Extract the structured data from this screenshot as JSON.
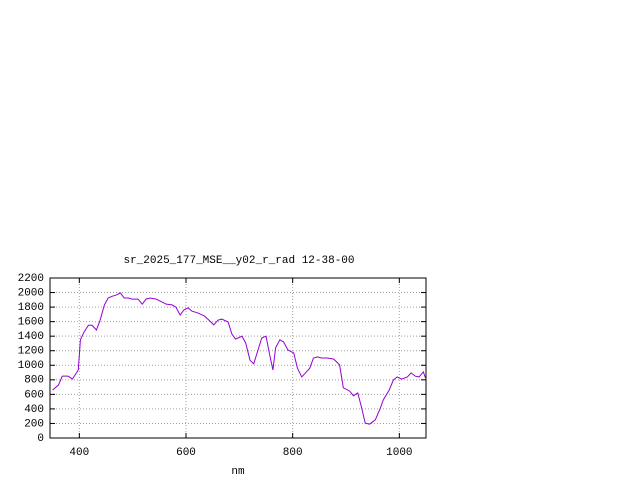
{
  "chart_data": {
    "type": "line",
    "title": "sr_2025_177_MSE__y02_r_rad 12-38-00",
    "x_label": "nm",
    "x": [
      350,
      361,
      368,
      379,
      387,
      398,
      402,
      409,
      417,
      424,
      432,
      439,
      447,
      454,
      462,
      469,
      477,
      484,
      492,
      499,
      510,
      518,
      525,
      533,
      544,
      551,
      563,
      574,
      581,
      589,
      596,
      604,
      611,
      622,
      634,
      641,
      652,
      660,
      667,
      679,
      686,
      693,
      705,
      712,
      720,
      727,
      735,
      742,
      750,
      757,
      763,
      768,
      776,
      783,
      791,
      802,
      809,
      817,
      824,
      832,
      839,
      847,
      854,
      865,
      877,
      888,
      895,
      907,
      914,
      922,
      929,
      936,
      944,
      955,
      963,
      970,
      981,
      989,
      996,
      1004,
      1015,
      1022,
      1030,
      1037,
      1045,
      1049
    ],
    "values": [
      660,
      730,
      850,
      850,
      810,
      935,
      1350,
      1460,
      1550,
      1550,
      1485,
      1620,
      1830,
      1925,
      1950,
      1965,
      1995,
      1925,
      1925,
      1910,
      1910,
      1840,
      1910,
      1925,
      1910,
      1885,
      1840,
      1830,
      1800,
      1690,
      1760,
      1790,
      1745,
      1720,
      1680,
      1635,
      1555,
      1620,
      1635,
      1595,
      1430,
      1360,
      1400,
      1305,
      1070,
      1020,
      1210,
      1375,
      1400,
      1140,
      935,
      1240,
      1350,
      1320,
      1210,
      1170,
      960,
      840,
      895,
      960,
      1100,
      1115,
      1100,
      1100,
      1085,
      1005,
      690,
      645,
      580,
      620,
      425,
      205,
      190,
      250,
      385,
      525,
      660,
      800,
      840,
      810,
      840,
      895,
      850,
      840,
      910,
      825
    ],
    "color": "#9400d3",
    "xlim": [
      345,
      1050
    ],
    "xticks": [
      400,
      600,
      800,
      1000
    ],
    "ylim": [
      0,
      2200
    ],
    "yticks": [
      0,
      200,
      400,
      600,
      800,
      1000,
      1200,
      1400,
      1600,
      1800,
      2000,
      2200
    ],
    "grid": true
  }
}
